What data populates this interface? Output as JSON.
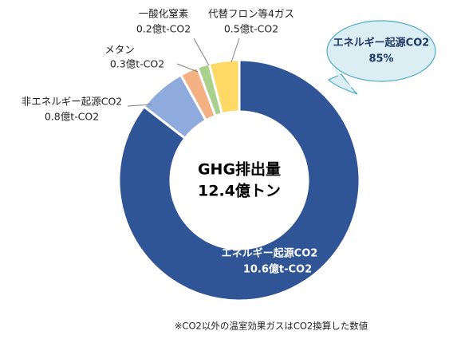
{
  "chart_data": {
    "type": "donut",
    "categories": [
      "エネルギー起源CO2",
      "非エネルギー起源CO2",
      "メタン",
      "一酸化窒素",
      "代替フロン等4ガス"
    ],
    "values": [
      10.6,
      0.8,
      0.3,
      0.2,
      0.5
    ],
    "value_labels": [
      "10.6億t-CO2",
      "0.8億t-CO2",
      "0.3億t-CO2",
      "0.2億t-CO2",
      "0.5億t-CO2"
    ],
    "colors": [
      "#2f5597",
      "#8faadc",
      "#f4b183",
      "#a9d18e",
      "#ffd966"
    ],
    "center_text": [
      "GHG排出量",
      "12.4億トン"
    ],
    "callout": [
      "エネルギー起源CO2",
      "85%"
    ],
    "footnote": "※CO2以外の温室効果ガスはCO2換算した数値"
  }
}
